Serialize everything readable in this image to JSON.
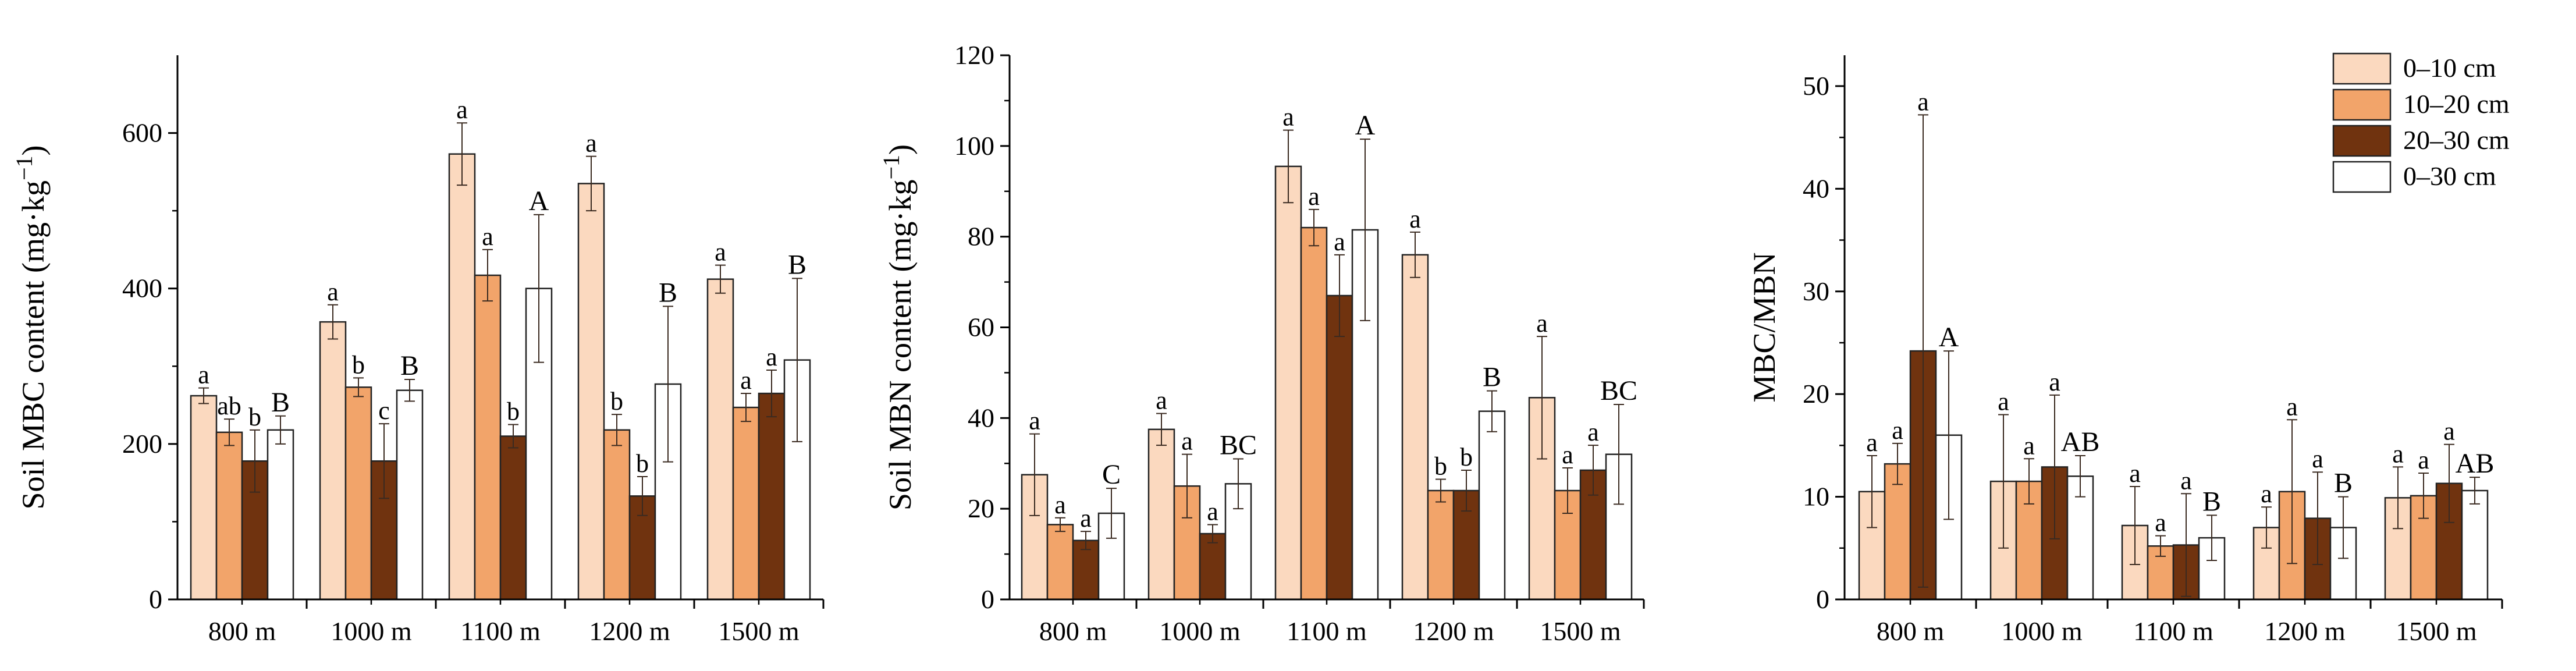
{
  "legend": {
    "entries": [
      "0–10 cm",
      "10–20 cm",
      "20–30 cm",
      "0–30 cm"
    ],
    "colors": [
      "#FBD9BF",
      "#F2A46A",
      "#70330F",
      "#FFFFFF"
    ],
    "placement": "top-right"
  },
  "chart_data": [
    {
      "type": "bar",
      "ylabel": "Soil MBC content (mg·kg⁻¹)",
      "ylabel_base": "Soil MBC content (mg·kg",
      "ylabel_sup": "−1",
      "ylabel_tail": ")",
      "xlabel": "",
      "categories": [
        "800 m",
        "1000 m",
        "1100 m",
        "1200 m",
        "1500 m"
      ],
      "ylim": [
        0,
        700
      ],
      "yticks": [
        0,
        200,
        400,
        600
      ],
      "series": [
        {
          "name": "0–10 cm",
          "values": [
            262,
            357,
            573,
            535,
            412
          ],
          "errors": [
            10,
            22,
            40,
            35,
            18
          ],
          "labels": [
            "a",
            "a",
            "a",
            "a",
            "a"
          ]
        },
        {
          "name": "10–20 cm",
          "values": [
            215,
            273,
            417,
            218,
            247
          ],
          "errors": [
            17,
            12,
            33,
            20,
            18
          ],
          "labels": [
            "ab",
            "b",
            "a",
            "b",
            "a"
          ]
        },
        {
          "name": "20–30 cm",
          "values": [
            178,
            178,
            210,
            133,
            265
          ],
          "errors": [
            40,
            48,
            15,
            25,
            30
          ],
          "labels": [
            "b",
            "c",
            "b",
            "b",
            "a"
          ]
        },
        {
          "name": "0–30 cm",
          "values": [
            218,
            269,
            400,
            277,
            308
          ],
          "errors": [
            18,
            14,
            95,
            100,
            105
          ],
          "labels": [
            "B",
            "B",
            "A",
            "B",
            "B"
          ]
        }
      ]
    },
    {
      "type": "bar",
      "ylabel": "Soil MBN content (mg·kg⁻¹)",
      "ylabel_base": "Soil MBN content (mg·kg",
      "ylabel_sup": "−1",
      "ylabel_tail": ")",
      "xlabel": "",
      "categories": [
        "800 m",
        "1000 m",
        "1100 m",
        "1200 m",
        "1500 m"
      ],
      "ylim": [
        0,
        120
      ],
      "yticks": [
        0,
        20,
        40,
        60,
        80,
        100,
        120
      ],
      "series": [
        {
          "name": "0–10 cm",
          "values": [
            27.5,
            37.5,
            95.5,
            76,
            44.5
          ],
          "errors": [
            9,
            3.5,
            8,
            5,
            13.5
          ],
          "labels": [
            "a",
            "a",
            "a",
            "a",
            "a"
          ]
        },
        {
          "name": "10–20 cm",
          "values": [
            16.5,
            25,
            82,
            24,
            24
          ],
          "errors": [
            1.5,
            7,
            4,
            2.5,
            5
          ],
          "labels": [
            "a",
            "a",
            "a",
            "b",
            "a"
          ]
        },
        {
          "name": "20–30 cm",
          "values": [
            13,
            14.5,
            67,
            24,
            28.5
          ],
          "errors": [
            2,
            2,
            9,
            4.5,
            5.5
          ],
          "labels": [
            "a",
            "a",
            "a",
            "b",
            "a"
          ]
        },
        {
          "name": "0–30 cm",
          "values": [
            19,
            25.5,
            81.5,
            41.5,
            32
          ],
          "errors": [
            5.5,
            5.5,
            20,
            4.5,
            11
          ],
          "labels": [
            "C",
            "BC",
            "A",
            "B",
            "BC"
          ]
        }
      ]
    },
    {
      "type": "bar",
      "ylabel": "MBC/MBN",
      "ylabel_base": "MBC/MBN",
      "ylabel_sup": "",
      "ylabel_tail": "",
      "xlabel": "",
      "categories": [
        "800 m",
        "1000 m",
        "1100 m",
        "1200 m",
        "1500 m"
      ],
      "ylim": [
        0,
        53
      ],
      "yticks": [
        0,
        10,
        20,
        30,
        40,
        50
      ],
      "series": [
        {
          "name": "0–10 cm",
          "values": [
            10.5,
            11.5,
            7.2,
            7.0,
            9.9
          ],
          "errors": [
            3.5,
            6.5,
            3.8,
            2.0,
            3.0
          ],
          "labels": [
            "a",
            "a",
            "a",
            "a",
            "a"
          ]
        },
        {
          "name": "10–20 cm",
          "values": [
            13.2,
            11.5,
            5.2,
            10.5,
            10.1
          ],
          "errors": [
            2,
            2.2,
            1.0,
            7,
            2.2
          ],
          "labels": [
            "a",
            "a",
            "a",
            "a",
            "a"
          ]
        },
        {
          "name": "20–30 cm",
          "values": [
            24.2,
            12.9,
            5.3,
            7.9,
            11.3
          ],
          "errors": [
            23,
            7,
            5,
            4.5,
            3.8
          ],
          "labels": [
            "a",
            "a",
            "a",
            "a",
            "a"
          ]
        },
        {
          "name": "0–30 cm",
          "values": [
            16,
            12,
            6,
            7,
            10.6
          ],
          "errors": [
            8.2,
            2,
            2.2,
            3,
            1.3
          ],
          "labels": [
            "A",
            "AB",
            "B",
            "B",
            "AB"
          ]
        }
      ]
    }
  ]
}
